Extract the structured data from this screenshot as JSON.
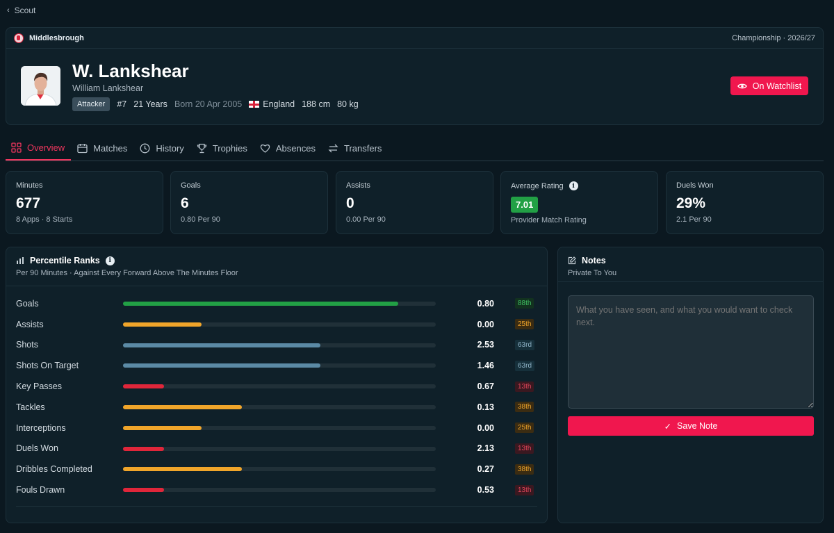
{
  "nav": {
    "back_label": "Scout"
  },
  "header": {
    "club": "Middlesbrough",
    "competition": "Championship · 2026/27",
    "player_short": "W. Lankshear",
    "player_full": "William Lankshear",
    "position": "Attacker",
    "number": "#7",
    "age": "21 Years",
    "born": "Born 20 Apr 2005",
    "nationality": "England",
    "height": "188 cm",
    "weight": "80 kg",
    "watch_label": "On Watchlist"
  },
  "tabs": [
    {
      "label": "Overview",
      "icon": "grid-icon",
      "active": true
    },
    {
      "label": "Matches",
      "icon": "calendar-icon"
    },
    {
      "label": "History",
      "icon": "clock-icon"
    },
    {
      "label": "Trophies",
      "icon": "trophy-icon"
    },
    {
      "label": "Absences",
      "icon": "heart-icon"
    },
    {
      "label": "Transfers",
      "icon": "arrows-icon"
    }
  ],
  "stats": {
    "minutes": {
      "label": "Minutes",
      "value": "677",
      "sub": "8 Apps · 8 Starts"
    },
    "goals": {
      "label": "Goals",
      "value": "6",
      "sub": "0.80 Per 90"
    },
    "assists": {
      "label": "Assists",
      "value": "0",
      "sub": "0.00 Per 90"
    },
    "rating": {
      "label": "Average Rating",
      "value": "7.01",
      "sub": "Provider Match Rating"
    },
    "duels": {
      "label": "Duels Won",
      "value": "29%",
      "sub": "2.1 Per 90"
    }
  },
  "percentile": {
    "title": "Percentile Ranks",
    "subtitle": "Per 90 Minutes · Against Every Forward Above The Minutes Floor",
    "rows": [
      {
        "name": "Goals",
        "value": "0.80",
        "rank": "88th",
        "pct": 88,
        "tier": "high"
      },
      {
        "name": "Assists",
        "value": "0.00",
        "rank": "25th",
        "pct": 25,
        "tier": "low"
      },
      {
        "name": "Shots",
        "value": "2.53",
        "rank": "63rd",
        "pct": 63,
        "tier": "mid"
      },
      {
        "name": "Shots On Target",
        "value": "1.46",
        "rank": "63rd",
        "pct": 63,
        "tier": "mid"
      },
      {
        "name": "Key Passes",
        "value": "0.67",
        "rank": "13th",
        "pct": 13,
        "tier": "bad"
      },
      {
        "name": "Tackles",
        "value": "0.13",
        "rank": "38th",
        "pct": 38,
        "tier": "low"
      },
      {
        "name": "Interceptions",
        "value": "0.00",
        "rank": "25th",
        "pct": 25,
        "tier": "low"
      },
      {
        "name": "Duels Won",
        "value": "2.13",
        "rank": "13th",
        "pct": 13,
        "tier": "bad"
      },
      {
        "name": "Dribbles Completed",
        "value": "0.27",
        "rank": "38th",
        "pct": 38,
        "tier": "low"
      },
      {
        "name": "Fouls Drawn",
        "value": "0.53",
        "rank": "13th",
        "pct": 13,
        "tier": "bad"
      }
    ]
  },
  "notes": {
    "title": "Notes",
    "subtitle": "Private To You",
    "placeholder": "What you have seen, and what you would want to check next.",
    "save_label": "Save Note"
  },
  "colors": {
    "accent": "#f0174e",
    "high": "#22a045",
    "mid": "#5b8aa5",
    "low": "#f0a52a",
    "bad": "#e0263a"
  }
}
